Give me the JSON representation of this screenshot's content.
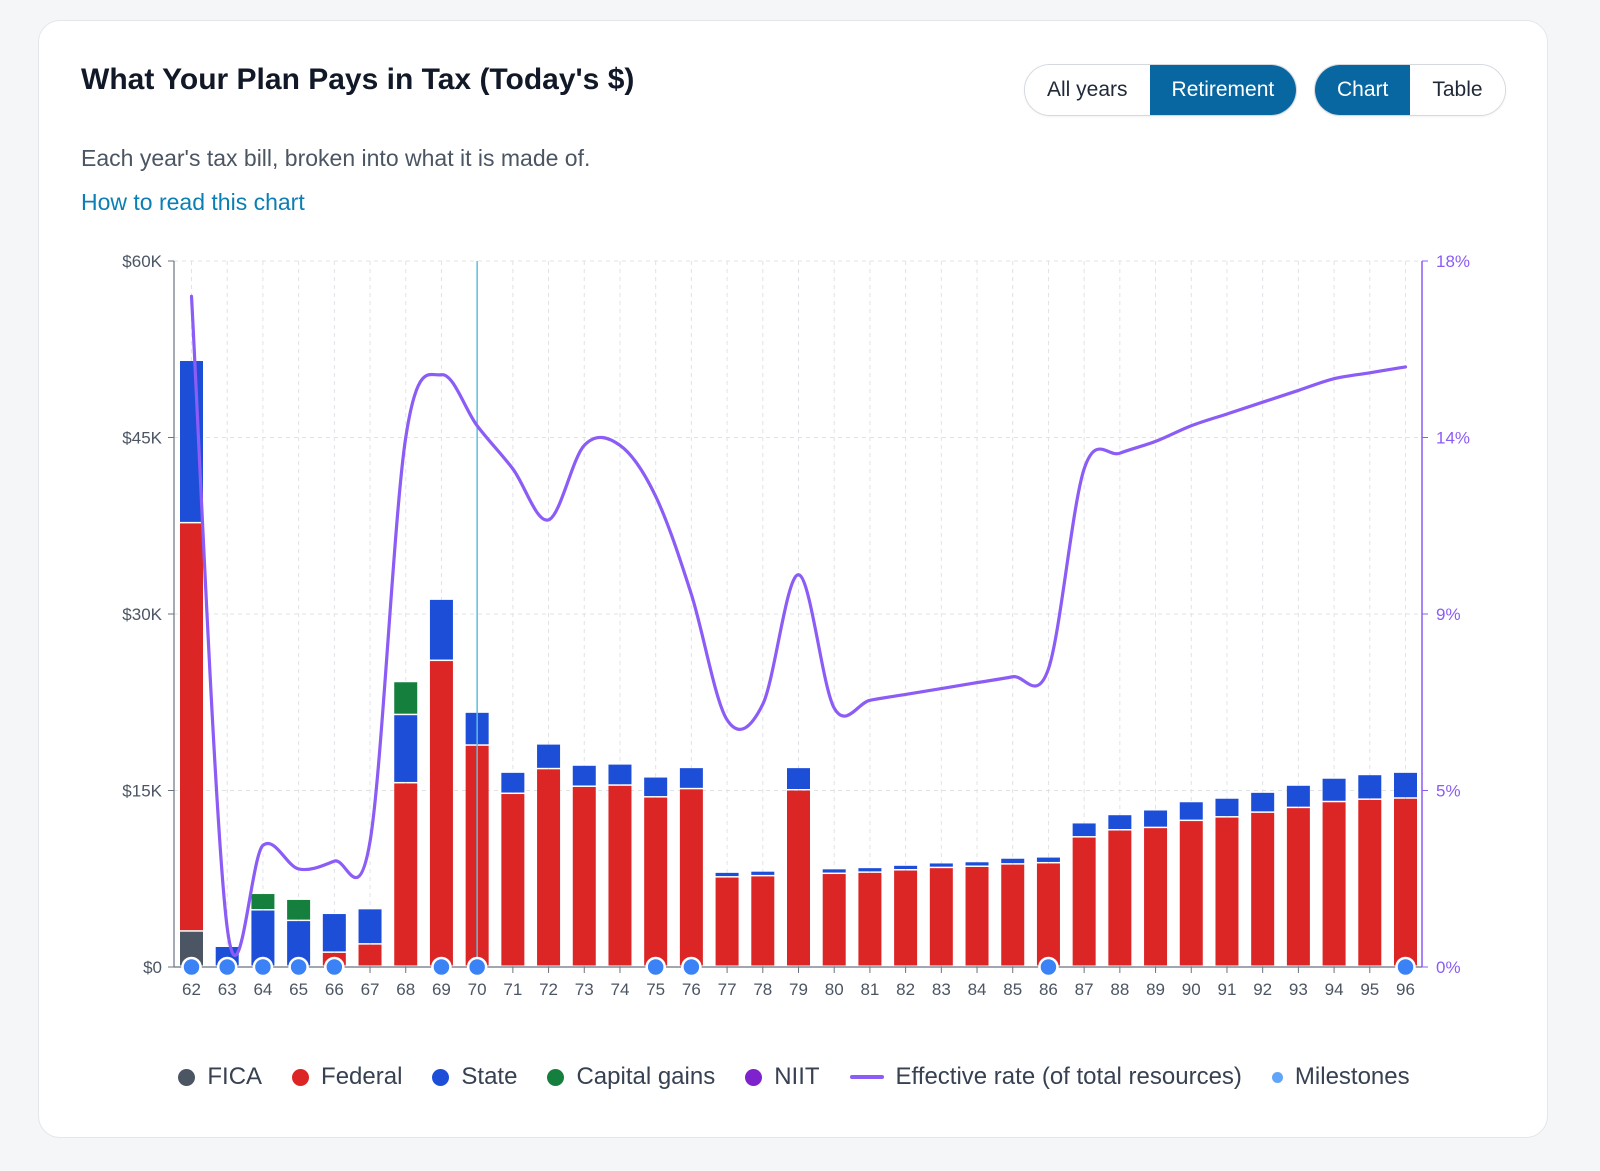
{
  "header": {
    "title": "What Your Plan Pays in Tax (Today's $)",
    "subtitle": "Each year's tax bill, broken into what it is made of.",
    "help_link": "How to read this chart"
  },
  "controls": {
    "range": {
      "options": [
        "All years",
        "Retirement"
      ],
      "selected": "Retirement"
    },
    "view": {
      "options": [
        "Chart",
        "Table"
      ],
      "selected": "Chart"
    }
  },
  "colors": {
    "fica": "#4b5563",
    "federal": "#dc2626",
    "state": "#1d4ed8",
    "capital_gains": "#15803d",
    "niit": "#7e22ce",
    "effective_rate": "#8b5cf6",
    "milestone": "#60a5fa",
    "cursor": "#5bc0de",
    "grid": "#dfe3e8",
    "axis": "#6b7280"
  },
  "legend": [
    {
      "key": "fica",
      "label": "FICA",
      "marker": "dot"
    },
    {
      "key": "federal",
      "label": "Federal",
      "marker": "dot"
    },
    {
      "key": "state",
      "label": "State",
      "marker": "dot"
    },
    {
      "key": "capital_gains",
      "label": "Capital gains",
      "marker": "dot"
    },
    {
      "key": "niit",
      "label": "NIIT",
      "marker": "dot"
    },
    {
      "key": "effective_rate",
      "label": "Effective rate (of total resources)",
      "marker": "line"
    },
    {
      "key": "milestone",
      "label": "Milestones",
      "marker": "small-dot"
    }
  ],
  "chart_data": {
    "type": "bar",
    "stacked": true,
    "categories": [
      "62",
      "63",
      "64",
      "65",
      "66",
      "67",
      "68",
      "69",
      "70",
      "71",
      "72",
      "73",
      "74",
      "75",
      "76",
      "77",
      "78",
      "79",
      "80",
      "81",
      "82",
      "83",
      "84",
      "85",
      "86",
      "87",
      "88",
      "89",
      "90",
      "91",
      "92",
      "93",
      "94",
      "95",
      "96"
    ],
    "y_left": {
      "ticks": [
        "$0",
        "$15K",
        "$30K",
        "$45K",
        "$60K"
      ],
      "ylim": [
        0,
        60000
      ]
    },
    "y_right": {
      "ticks": [
        "0%",
        "5%",
        "9%",
        "14%",
        "18%"
      ],
      "ylim": [
        0,
        18
      ]
    },
    "grid": true,
    "legend_position": "bottom",
    "series": [
      {
        "name": "FICA",
        "key": "fica",
        "values": [
          3000,
          0,
          0,
          0,
          0,
          0,
          0,
          0,
          0,
          0,
          0,
          0,
          0,
          0,
          0,
          0,
          0,
          0,
          0,
          0,
          0,
          0,
          0,
          0,
          0,
          0,
          0,
          0,
          0,
          0,
          0,
          0,
          0,
          0,
          0
        ]
      },
      {
        "name": "Federal",
        "key": "federal",
        "values": [
          34700,
          0,
          0,
          0,
          1200,
          1900,
          15600,
          26000,
          18800,
          14700,
          16800,
          15300,
          15400,
          14400,
          15100,
          7600,
          7700,
          15000,
          7900,
          8000,
          8200,
          8400,
          8500,
          8700,
          8800,
          11000,
          11600,
          11800,
          12400,
          12700,
          13100,
          13500,
          14000,
          14200,
          14300
        ]
      },
      {
        "name": "State",
        "key": "state",
        "values": [
          13800,
          1700,
          4800,
          3900,
          3300,
          3000,
          5800,
          5200,
          2800,
          1800,
          2100,
          1800,
          1800,
          1700,
          1800,
          400,
          400,
          1900,
          400,
          400,
          400,
          400,
          400,
          500,
          500,
          1200,
          1300,
          1500,
          1600,
          1600,
          1700,
          1900,
          2000,
          2100,
          2200
        ]
      },
      {
        "name": "Capital gains",
        "key": "capital_gains",
        "values": [
          0,
          0,
          1400,
          1800,
          0,
          0,
          2800,
          0,
          0,
          0,
          0,
          0,
          0,
          0,
          0,
          0,
          0,
          0,
          0,
          0,
          0,
          0,
          0,
          0,
          0,
          0,
          0,
          0,
          0,
          0,
          0,
          0,
          0,
          0,
          0
        ]
      },
      {
        "name": "NIIT",
        "key": "niit",
        "values": [
          0,
          0,
          0,
          0,
          0,
          0,
          0,
          0,
          0,
          0,
          0,
          0,
          0,
          0,
          0,
          0,
          0,
          0,
          0,
          0,
          0,
          0,
          0,
          0,
          0,
          0,
          0,
          0,
          0,
          0,
          0,
          0,
          0,
          0,
          0
        ]
      }
    ],
    "line": {
      "name": "Effective rate (of total resources)",
      "axis": "right",
      "values": [
        17.1,
        1.0,
        3.1,
        2.5,
        2.7,
        3.2,
        13.5,
        15.1,
        13.8,
        12.7,
        11.4,
        13.3,
        13.3,
        12.0,
        9.5,
        6.3,
        6.7,
        10.0,
        6.6,
        6.8,
        6.95,
        7.1,
        7.25,
        7.4,
        7.6,
        12.7,
        13.1,
        13.4,
        13.8,
        14.1,
        14.4,
        14.7,
        15.0,
        15.15,
        15.3
      ]
    },
    "milestones": [
      "62",
      "63",
      "64",
      "65",
      "66",
      "69",
      "70",
      "75",
      "76",
      "86",
      "96"
    ],
    "highlighted_category": "70"
  }
}
